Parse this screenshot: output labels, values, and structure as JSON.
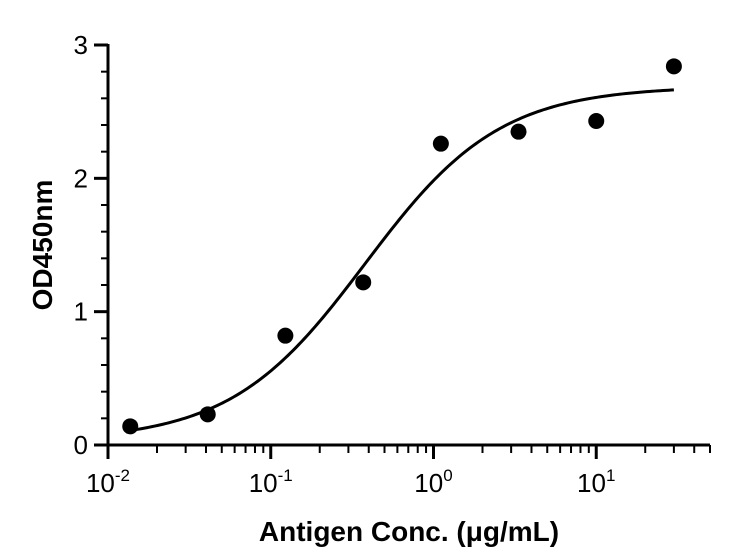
{
  "chart_data": {
    "type": "scatter",
    "title": "",
    "xlabel": "Antigen Conc. (μg/mL)",
    "ylabel": "OD450nm",
    "x_scale": "log",
    "xlim": [
      0.01,
      50
    ],
    "ylim": [
      0,
      3
    ],
    "x_ticks": [
      {
        "value": 0.01,
        "base": "10",
        "exp": "-2"
      },
      {
        "value": 0.1,
        "base": "10",
        "exp": "-1"
      },
      {
        "value": 1,
        "base": "10",
        "exp": "0"
      },
      {
        "value": 10,
        "base": "10",
        "exp": "1"
      }
    ],
    "y_ticks": [
      {
        "value": 0,
        "label": "0"
      },
      {
        "value": 1,
        "label": "1"
      },
      {
        "value": 2,
        "label": "2"
      },
      {
        "value": 3,
        "label": "3"
      }
    ],
    "points": [
      {
        "x": 0.0137,
        "y": 0.14
      },
      {
        "x": 0.041,
        "y": 0.23
      },
      {
        "x": 0.123,
        "y": 0.82
      },
      {
        "x": 0.37,
        "y": 1.22
      },
      {
        "x": 1.11,
        "y": 2.26
      },
      {
        "x": 3.33,
        "y": 2.35
      },
      {
        "x": 10,
        "y": 2.43
      },
      {
        "x": 30,
        "y": 2.84
      }
    ],
    "fit": {
      "model": "4PL",
      "bottom": 0.03,
      "top": 2.69,
      "ec50": 0.38,
      "hill": 1.05,
      "x_start": 0.0137,
      "x_end": 30
    },
    "grid": false,
    "legend": "none",
    "colors": {
      "points": "#000000",
      "curve": "#000000",
      "axes": "#000000"
    }
  }
}
